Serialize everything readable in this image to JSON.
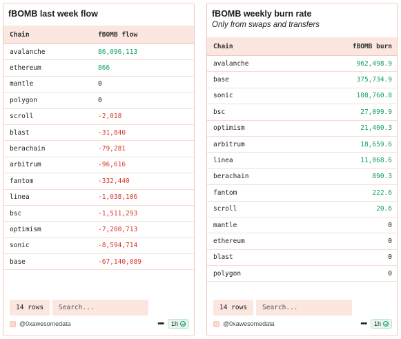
{
  "left_panel": {
    "title": "fBOMB last week flow",
    "columns": {
      "chain": "Chain",
      "value": "fBOMB flow"
    },
    "rows": [
      {
        "chain": "avalanche",
        "value": "86,096,113",
        "sign": "pos"
      },
      {
        "chain": "ethereum",
        "value": "866",
        "sign": "pos"
      },
      {
        "chain": "mantle",
        "value": "0",
        "sign": "zero"
      },
      {
        "chain": "polygon",
        "value": "0",
        "sign": "zero"
      },
      {
        "chain": "scroll",
        "value": "-2,018",
        "sign": "neg"
      },
      {
        "chain": "blast",
        "value": "-31,840",
        "sign": "neg"
      },
      {
        "chain": "berachain",
        "value": "-79,281",
        "sign": "neg"
      },
      {
        "chain": "arbitrum",
        "value": "-96,616",
        "sign": "neg"
      },
      {
        "chain": "fantom",
        "value": "-332,440",
        "sign": "neg"
      },
      {
        "chain": "linea",
        "value": "-1,038,106",
        "sign": "neg"
      },
      {
        "chain": "bsc",
        "value": "-1,511,293",
        "sign": "neg"
      },
      {
        "chain": "optimism",
        "value": "-7,200,713",
        "sign": "neg"
      },
      {
        "chain": "sonic",
        "value": "-8,594,714",
        "sign": "neg"
      },
      {
        "chain": "base",
        "value": "-67,140,089",
        "sign": "neg"
      }
    ],
    "row_count": "14 rows",
    "search_placeholder": "Search...",
    "author": "@0xawesomedata",
    "more": "•••",
    "refresh": "1h"
  },
  "right_panel": {
    "title": "fBOMB weekly burn rate",
    "subtitle": "Only from swaps and transfers",
    "columns": {
      "chain": "Chain",
      "value": "fBOMB burn"
    },
    "rows": [
      {
        "chain": "avalanche",
        "value": "962,498.9",
        "sign": "pos"
      },
      {
        "chain": "base",
        "value": "375,734.9",
        "sign": "pos"
      },
      {
        "chain": "sonic",
        "value": "108,760.8",
        "sign": "pos"
      },
      {
        "chain": "bsc",
        "value": "27,099.9",
        "sign": "pos"
      },
      {
        "chain": "optimism",
        "value": "21,400.3",
        "sign": "pos"
      },
      {
        "chain": "arbitrum",
        "value": "18,659.6",
        "sign": "pos"
      },
      {
        "chain": "linea",
        "value": "11,068.6",
        "sign": "pos"
      },
      {
        "chain": "berachain",
        "value": "890.3",
        "sign": "pos"
      },
      {
        "chain": "fantom",
        "value": "222.6",
        "sign": "pos"
      },
      {
        "chain": "scroll",
        "value": "20.6",
        "sign": "pos"
      },
      {
        "chain": "mantle",
        "value": "0",
        "sign": "zero"
      },
      {
        "chain": "ethereum",
        "value": "0",
        "sign": "zero"
      },
      {
        "chain": "blast",
        "value": "0",
        "sign": "zero"
      },
      {
        "chain": "polygon",
        "value": "0",
        "sign": "zero"
      }
    ],
    "row_count": "14 rows",
    "search_placeholder": "Search...",
    "author": "@0xawesomedata",
    "more": "•••",
    "refresh": "1h"
  },
  "colors": {
    "positive": "#0e9f5c",
    "negative": "#d9382a",
    "accent_border": "#f3c6bc",
    "header_bg": "#fbe6e0"
  }
}
